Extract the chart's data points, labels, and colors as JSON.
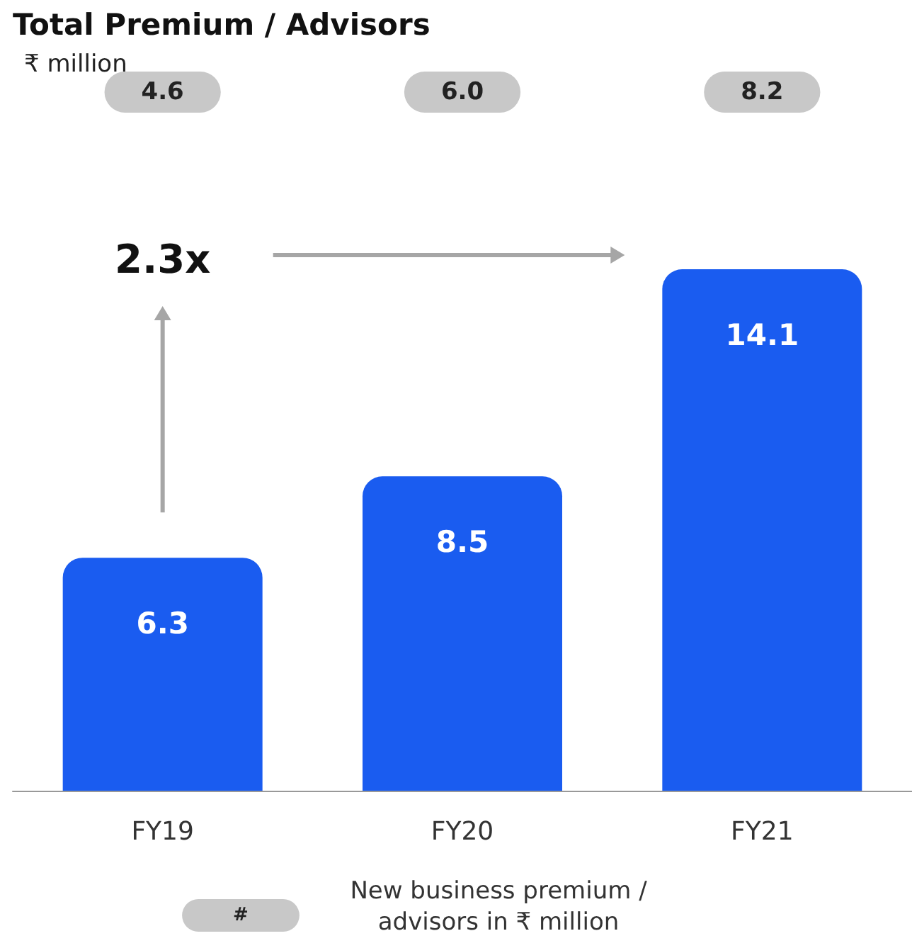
{
  "chart_data": {
    "type": "bar",
    "title": "Total Premium / Advisors",
    "subtitle": "₹ million",
    "categories": [
      "FY19",
      "FY20",
      "FY21"
    ],
    "values": [
      6.3,
      8.5,
      14.1
    ],
    "color": "#1a5cf0",
    "data_labels": true,
    "grid": false,
    "annotations": [
      "4.6",
      "6.0",
      "8.2",
      "2.3x",
      "#",
      "New business premium / advisors in ₹ million"
    ]
  }
}
